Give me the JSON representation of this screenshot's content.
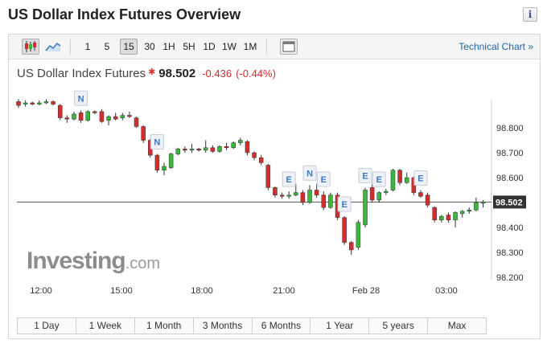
{
  "page": {
    "title": "US Dollar Index Futures Overview",
    "info_icon": "info-icon"
  },
  "toolbar": {
    "chart_types": [
      {
        "icon": "candlestick-icon"
      },
      {
        "icon": "area-chart-icon"
      }
    ],
    "intervals": [
      "1",
      "5",
      "15",
      "30",
      "1H",
      "5H",
      "1D",
      "1W",
      "1M"
    ],
    "active_interval": "15",
    "fullscreen_icon": "window-icon",
    "technical_chart_label": "Technical Chart »"
  },
  "quote": {
    "name": "US Dollar Index Futures",
    "price": "98.502",
    "change": "-0.436",
    "change_pct": "(-0.44%)",
    "down_color": "#d22e2e",
    "up_color": "#3ab83a"
  },
  "watermark": {
    "brand": "Investing",
    "suffix": ".com"
  },
  "range_buttons": [
    "1 Day",
    "1 Week",
    "1 Month",
    "3 Months",
    "6 Months",
    "1 Year",
    "5 years",
    "Max"
  ],
  "chart_data": {
    "type": "candlestick",
    "interval": "15",
    "ylim": [
      98.2,
      98.9
    ],
    "y_ticks": [
      "98.800",
      "98.700",
      "98.600",
      "98.500",
      "98.400",
      "98.300",
      "98.200"
    ],
    "x_ticks": [
      "12:00",
      "15:00",
      "18:00",
      "21:00",
      "Feb 28",
      "03:00"
    ],
    "last_price": 98.502,
    "last_price_label": "98.502",
    "candles": [
      {
        "o": 98.905,
        "h": 98.915,
        "l": 98.88,
        "c": 98.89
      },
      {
        "o": 98.895,
        "h": 98.91,
        "l": 98.885,
        "c": 98.9
      },
      {
        "o": 98.9,
        "h": 98.905,
        "l": 98.89,
        "c": 98.895
      },
      {
        "o": 98.895,
        "h": 98.91,
        "l": 98.89,
        "c": 98.9
      },
      {
        "o": 98.9,
        "h": 98.915,
        "l": 98.895,
        "c": 98.905
      },
      {
        "o": 98.905,
        "h": 98.91,
        "l": 98.89,
        "c": 98.895
      },
      {
        "o": 98.89,
        "h": 98.895,
        "l": 98.83,
        "c": 98.84
      },
      {
        "o": 98.84,
        "h": 98.85,
        "l": 98.82,
        "c": 98.835
      },
      {
        "o": 98.835,
        "h": 98.865,
        "l": 98.83,
        "c": 98.855
      },
      {
        "o": 98.86,
        "h": 98.87,
        "l": 98.82,
        "c": 98.83
      },
      {
        "o": 98.83,
        "h": 98.87,
        "l": 98.825,
        "c": 98.865
      },
      {
        "o": 98.865,
        "h": 98.87,
        "l": 98.855,
        "c": 98.86
      },
      {
        "o": 98.865,
        "h": 98.875,
        "l": 98.82,
        "c": 98.825
      },
      {
        "o": 98.83,
        "h": 98.85,
        "l": 98.81,
        "c": 98.845
      },
      {
        "o": 98.845,
        "h": 98.86,
        "l": 98.83,
        "c": 98.835
      },
      {
        "o": 98.84,
        "h": 98.86,
        "l": 98.83,
        "c": 98.85
      },
      {
        "o": 98.85,
        "h": 98.865,
        "l": 98.84,
        "c": 98.845
      },
      {
        "o": 98.84,
        "h": 98.845,
        "l": 98.8,
        "c": 98.805
      },
      {
        "o": 98.805,
        "h": 98.81,
        "l": 98.74,
        "c": 98.75
      },
      {
        "o": 98.75,
        "h": 98.755,
        "l": 98.68,
        "c": 98.69
      },
      {
        "o": 98.69,
        "h": 98.695,
        "l": 98.62,
        "c": 98.63
      },
      {
        "o": 98.63,
        "h": 98.66,
        "l": 98.61,
        "c": 98.645
      },
      {
        "o": 98.64,
        "h": 98.7,
        "l": 98.635,
        "c": 98.695
      },
      {
        "o": 98.695,
        "h": 98.72,
        "l": 98.69,
        "c": 98.715
      },
      {
        "o": 98.715,
        "h": 98.725,
        "l": 98.7,
        "c": 98.71
      },
      {
        "o": 98.71,
        "h": 98.735,
        "l": 98.7,
        "c": 98.715
      },
      {
        "o": 98.715,
        "h": 98.72,
        "l": 98.705,
        "c": 98.71
      },
      {
        "o": 98.71,
        "h": 98.75,
        "l": 98.7,
        "c": 98.72
      },
      {
        "o": 98.72,
        "h": 98.73,
        "l": 98.7,
        "c": 98.705
      },
      {
        "o": 98.705,
        "h": 98.73,
        "l": 98.7,
        "c": 98.725
      },
      {
        "o": 98.725,
        "h": 98.74,
        "l": 98.71,
        "c": 98.72
      },
      {
        "o": 98.72,
        "h": 98.745,
        "l": 98.715,
        "c": 98.74
      },
      {
        "o": 98.74,
        "h": 98.76,
        "l": 98.73,
        "c": 98.75
      },
      {
        "o": 98.745,
        "h": 98.75,
        "l": 98.69,
        "c": 98.7
      },
      {
        "o": 98.7,
        "h": 98.705,
        "l": 98.67,
        "c": 98.68
      },
      {
        "o": 98.68,
        "h": 98.69,
        "l": 98.65,
        "c": 98.66
      },
      {
        "o": 98.65,
        "h": 98.655,
        "l": 98.55,
        "c": 98.56
      },
      {
        "o": 98.56,
        "h": 98.565,
        "l": 98.52,
        "c": 98.53
      },
      {
        "o": 98.53,
        "h": 98.54,
        "l": 98.515,
        "c": 98.525
      },
      {
        "o": 98.525,
        "h": 98.545,
        "l": 98.515,
        "c": 98.53
      },
      {
        "o": 98.53,
        "h": 98.575,
        "l": 98.525,
        "c": 98.54
      },
      {
        "o": 98.54,
        "h": 98.55,
        "l": 98.49,
        "c": 98.5
      },
      {
        "o": 98.5,
        "h": 98.57,
        "l": 98.495,
        "c": 98.55
      },
      {
        "o": 98.55,
        "h": 98.575,
        "l": 98.52,
        "c": 98.53
      },
      {
        "o": 98.53,
        "h": 98.545,
        "l": 98.47,
        "c": 98.48
      },
      {
        "o": 98.48,
        "h": 98.54,
        "l": 98.475,
        "c": 98.53
      },
      {
        "o": 98.53,
        "h": 98.54,
        "l": 98.43,
        "c": 98.44
      },
      {
        "o": 98.44,
        "h": 98.445,
        "l": 98.33,
        "c": 98.34
      },
      {
        "o": 98.34,
        "h": 98.345,
        "l": 98.29,
        "c": 98.31
      },
      {
        "o": 98.32,
        "h": 98.43,
        "l": 98.31,
        "c": 98.42
      },
      {
        "o": 98.41,
        "h": 98.56,
        "l": 98.4,
        "c": 98.55
      },
      {
        "o": 98.56,
        "h": 98.575,
        "l": 98.5,
        "c": 98.51
      },
      {
        "o": 98.51,
        "h": 98.545,
        "l": 98.5,
        "c": 98.54
      },
      {
        "o": 98.54,
        "h": 98.555,
        "l": 98.53,
        "c": 98.545
      },
      {
        "o": 98.55,
        "h": 98.635,
        "l": 98.545,
        "c": 98.63
      },
      {
        "o": 98.63,
        "h": 98.635,
        "l": 98.57,
        "c": 98.58
      },
      {
        "o": 98.58,
        "h": 98.62,
        "l": 98.575,
        "c": 98.6
      },
      {
        "o": 98.6,
        "h": 98.605,
        "l": 98.53,
        "c": 98.54
      },
      {
        "o": 98.54,
        "h": 98.55,
        "l": 98.52,
        "c": 98.525
      },
      {
        "o": 98.53,
        "h": 98.54,
        "l": 98.48,
        "c": 98.49
      },
      {
        "o": 98.48,
        "h": 98.485,
        "l": 98.42,
        "c": 98.43
      },
      {
        "o": 98.43,
        "h": 98.45,
        "l": 98.42,
        "c": 98.445
      },
      {
        "o": 98.45,
        "h": 98.46,
        "l": 98.42,
        "c": 98.43
      },
      {
        "o": 98.43,
        "h": 98.465,
        "l": 98.4,
        "c": 98.46
      },
      {
        "o": 98.455,
        "h": 98.47,
        "l": 98.44,
        "c": 98.465
      },
      {
        "o": 98.465,
        "h": 98.48,
        "l": 98.455,
        "c": 98.47
      },
      {
        "o": 98.47,
        "h": 98.52,
        "l": 98.465,
        "c": 98.5
      },
      {
        "o": 98.5,
        "h": 98.51,
        "l": 98.48,
        "c": 98.502
      }
    ],
    "events": [
      {
        "label": "N",
        "candle": 9
      },
      {
        "label": "N",
        "candle": 20
      },
      {
        "label": "E",
        "candle": 39
      },
      {
        "label": "N",
        "candle": 42
      },
      {
        "label": "E",
        "candle": 44
      },
      {
        "label": "E",
        "candle": 47
      },
      {
        "label": "E",
        "candle": 50
      },
      {
        "label": "E",
        "candle": 52
      },
      {
        "label": "E",
        "candle": 58
      }
    ]
  }
}
